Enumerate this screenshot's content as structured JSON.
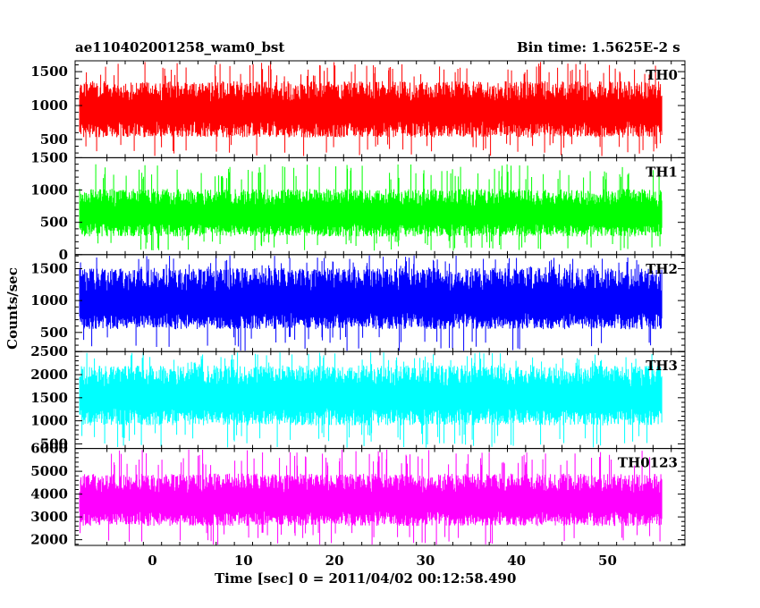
{
  "chart_data": {
    "type": "line",
    "title_left": "ae110402001258_wam0_bst",
    "title_right": "Bin time: 1.5625E-2 s",
    "xlabel": "Time [sec] 0 = 2011/04/02 00:12:58.490",
    "ylabel": "Counts/sec",
    "xlim": [
      -8.5,
      58.5
    ],
    "data_x_range": [
      -8.0,
      56.0
    ],
    "x_ticks": [
      0,
      10,
      20,
      30,
      40,
      50
    ],
    "x_tick_labels": [
      "0",
      "10",
      "20",
      "30",
      "40",
      "50"
    ],
    "panels": [
      {
        "name": "TH0",
        "color": "#ff0000",
        "ylim": [
          230,
          1660
        ],
        "y_ticks": [
          500,
          1000,
          1500
        ],
        "y_tick_labels": [
          "500",
          "1000",
          "1500"
        ],
        "mean": 900,
        "noise_low": 370,
        "noise_high": 460,
        "min": 250,
        "max": 1650
      },
      {
        "name": "TH1",
        "color": "#00ff00",
        "ylim": [
          0,
          1500
        ],
        "y_ticks": [
          0,
          500,
          1000,
          1500
        ],
        "y_tick_labels": [
          "0",
          "500",
          "1000",
          "1500"
        ],
        "mean": 600,
        "noise_low": 320,
        "noise_high": 420,
        "min": 60,
        "max": 1400
      },
      {
        "name": "TH2",
        "color": "#0000ff",
        "ylim": [
          200,
          1720
        ],
        "y_ticks": [
          500,
          1000,
          1500
        ],
        "y_tick_labels": [
          "500",
          "1000",
          "1500"
        ],
        "mean": 950,
        "noise_low": 400,
        "noise_high": 560,
        "min": 210,
        "max": 1710
      },
      {
        "name": "TH3",
        "color": "#00ffff",
        "ylim": [
          400,
          2500
        ],
        "y_ticks": [
          500,
          1000,
          1500,
          2000,
          2500
        ],
        "y_tick_labels": [
          "500",
          "1000",
          "1500",
          "2000",
          "2500"
        ],
        "mean": 1500,
        "noise_low": 600,
        "noise_high": 700,
        "min": 410,
        "max": 2490
      },
      {
        "name": "TH0123",
        "color": "#ff00ff",
        "ylim": [
          1750,
          6000
        ],
        "y_ticks": [
          2000,
          3000,
          4000,
          5000,
          6000
        ],
        "y_tick_labels": [
          "2000",
          "3000",
          "4000",
          "5000",
          "6000"
        ],
        "mean": 3600,
        "noise_low": 1000,
        "noise_high": 1300,
        "min": 1760,
        "max": 5950
      }
    ]
  }
}
